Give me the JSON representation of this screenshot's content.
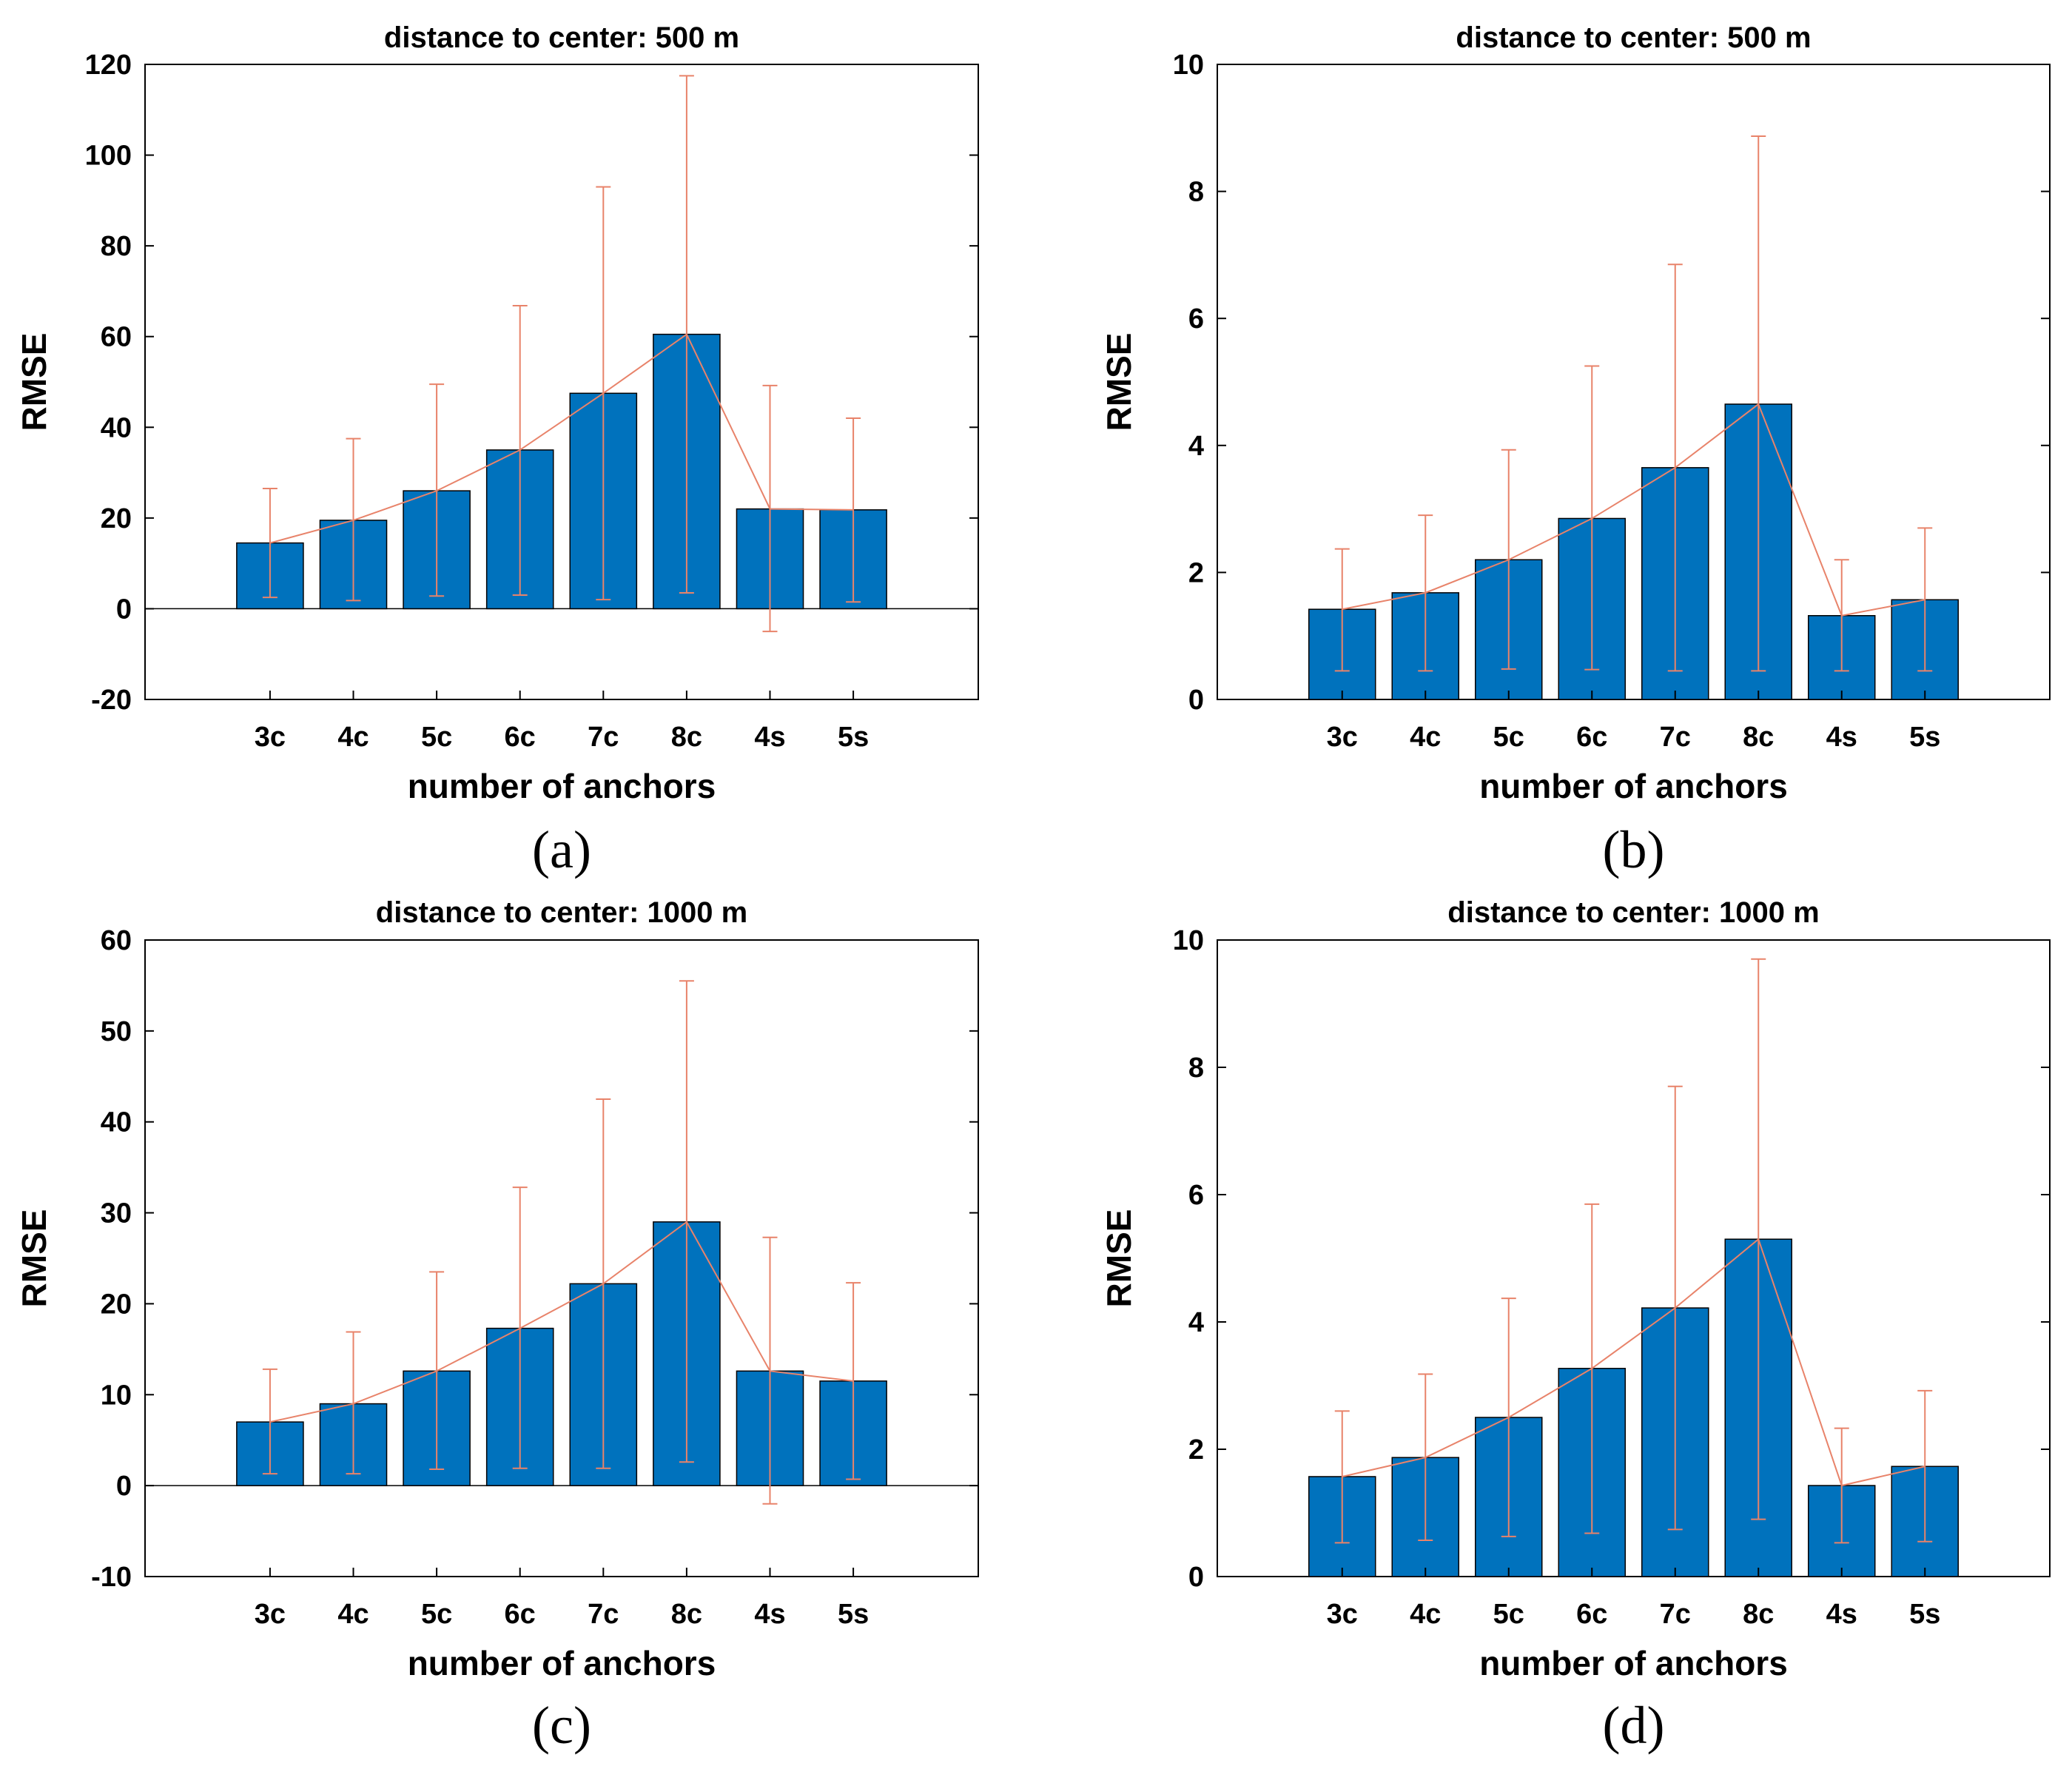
{
  "chart_data": [
    {
      "panel": "(a)",
      "type": "bar",
      "title": "distance to center: 500 m",
      "xlabel": "number of anchors",
      "ylabel": "RMSE",
      "categories": [
        "3c",
        "4c",
        "5c",
        "6c",
        "7c",
        "8c",
        "4s",
        "5s"
      ],
      "values": [
        14.5,
        19.5,
        26,
        35,
        47.5,
        60.5,
        22,
        21.8
      ],
      "error_upper": [
        26.5,
        37.5,
        49.5,
        66.8,
        93,
        117.5,
        49.2,
        42
      ],
      "error_lower": [
        2.5,
        1.8,
        2.8,
        3,
        2,
        3.5,
        -5,
        1.5
      ],
      "ylim": [
        -20,
        120
      ],
      "yticks": [
        -20,
        0,
        20,
        40,
        60,
        80,
        100,
        120
      ],
      "bar_color": "#0072BD",
      "line_color": "#E8836A"
    },
    {
      "panel": "(b)",
      "type": "bar",
      "title": "distance to center: 500 m",
      "xlabel": "number of anchors",
      "ylabel": "RMSE",
      "categories": [
        "3c",
        "4c",
        "5c",
        "6c",
        "7c",
        "8c",
        "4s",
        "5s"
      ],
      "values": [
        1.42,
        1.68,
        2.2,
        2.85,
        3.65,
        4.65,
        1.32,
        1.57
      ],
      "error_upper": [
        2.37,
        2.9,
        3.93,
        5.25,
        6.85,
        8.87,
        2.2,
        2.7
      ],
      "error_lower": [
        0.45,
        0.45,
        0.48,
        0.47,
        0.45,
        0.45,
        0.45,
        0.45
      ],
      "ylim": [
        0,
        10
      ],
      "yticks": [
        0,
        2,
        4,
        6,
        8,
        10
      ],
      "bar_color": "#0072BD",
      "line_color": "#E8836A"
    },
    {
      "panel": "(c)",
      "type": "bar",
      "title": "distance to center: 1000 m",
      "xlabel": "number of anchors",
      "ylabel": "RMSE",
      "categories": [
        "3c",
        "4c",
        "5c",
        "6c",
        "7c",
        "8c",
        "4s",
        "5s"
      ],
      "values": [
        7,
        9,
        12.6,
        17.3,
        22.2,
        29,
        12.6,
        11.5
      ],
      "error_upper": [
        12.8,
        16.9,
        23.5,
        32.8,
        42.5,
        55.5,
        27.3,
        22.3
      ],
      "error_lower": [
        1.3,
        1.3,
        1.8,
        1.9,
        1.9,
        2.6,
        -2,
        0.7
      ],
      "ylim": [
        -10,
        60
      ],
      "yticks": [
        -10,
        0,
        10,
        20,
        30,
        40,
        50,
        60
      ],
      "bar_color": "#0072BD",
      "line_color": "#E8836A"
    },
    {
      "panel": "(d)",
      "type": "bar",
      "title": "distance to center: 1000 m",
      "xlabel": "number of anchors",
      "ylabel": "RMSE",
      "categories": [
        "3c",
        "4c",
        "5c",
        "6c",
        "7c",
        "8c",
        "4s",
        "5s"
      ],
      "values": [
        1.57,
        1.87,
        2.5,
        3.27,
        4.22,
        5.3,
        1.43,
        1.73
      ],
      "error_upper": [
        2.6,
        3.18,
        4.37,
        5.85,
        7.7,
        9.7,
        2.33,
        2.92
      ],
      "error_lower": [
        0.53,
        0.57,
        0.63,
        0.68,
        0.74,
        0.9,
        0.53,
        0.55
      ],
      "ylim": [
        0,
        10
      ],
      "yticks": [
        0,
        2,
        4,
        6,
        8,
        10
      ],
      "bar_color": "#0072BD",
      "line_color": "#E8836A"
    }
  ]
}
